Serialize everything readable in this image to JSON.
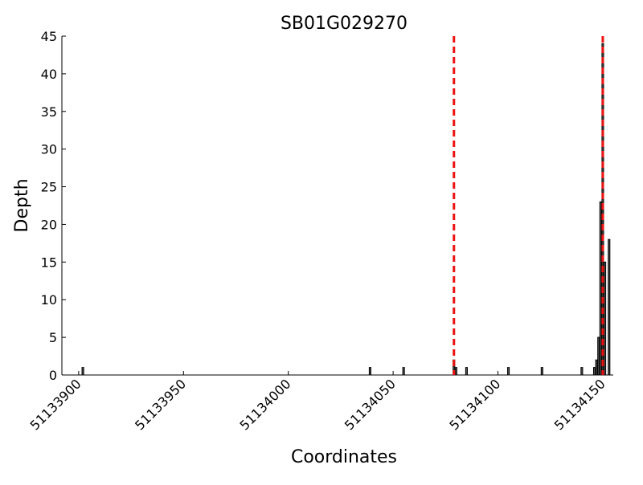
{
  "chart_data": {
    "type": "bar",
    "title": "SB01G029270",
    "x_label": "Coordinates",
    "y_label": "Depth",
    "x": [
      51133902,
      51134039,
      51134055,
      51134079,
      51134080,
      51134085,
      51134105,
      51134121,
      51134140,
      51134146,
      51134147,
      51134148,
      51134149,
      51134150,
      51134151,
      51134153
    ],
    "values": [
      1,
      1,
      1,
      2,
      1,
      1,
      1,
      1,
      1,
      1,
      2,
      5,
      23,
      44,
      15,
      18
    ],
    "color": "#555555",
    "edge_color": "#000000",
    "vlines": [
      51134079,
      51134150
    ],
    "vline_color": "#ee1111",
    "xlim": [
      51133892,
      51134155
    ],
    "xticks": [
      51133900,
      51133950,
      51134000,
      51134050,
      51134100,
      51134150
    ],
    "ylim": [
      0,
      45
    ],
    "yticks": [
      0,
      5,
      10,
      15,
      20,
      25,
      30,
      35,
      40,
      45
    ],
    "grid": false
  }
}
